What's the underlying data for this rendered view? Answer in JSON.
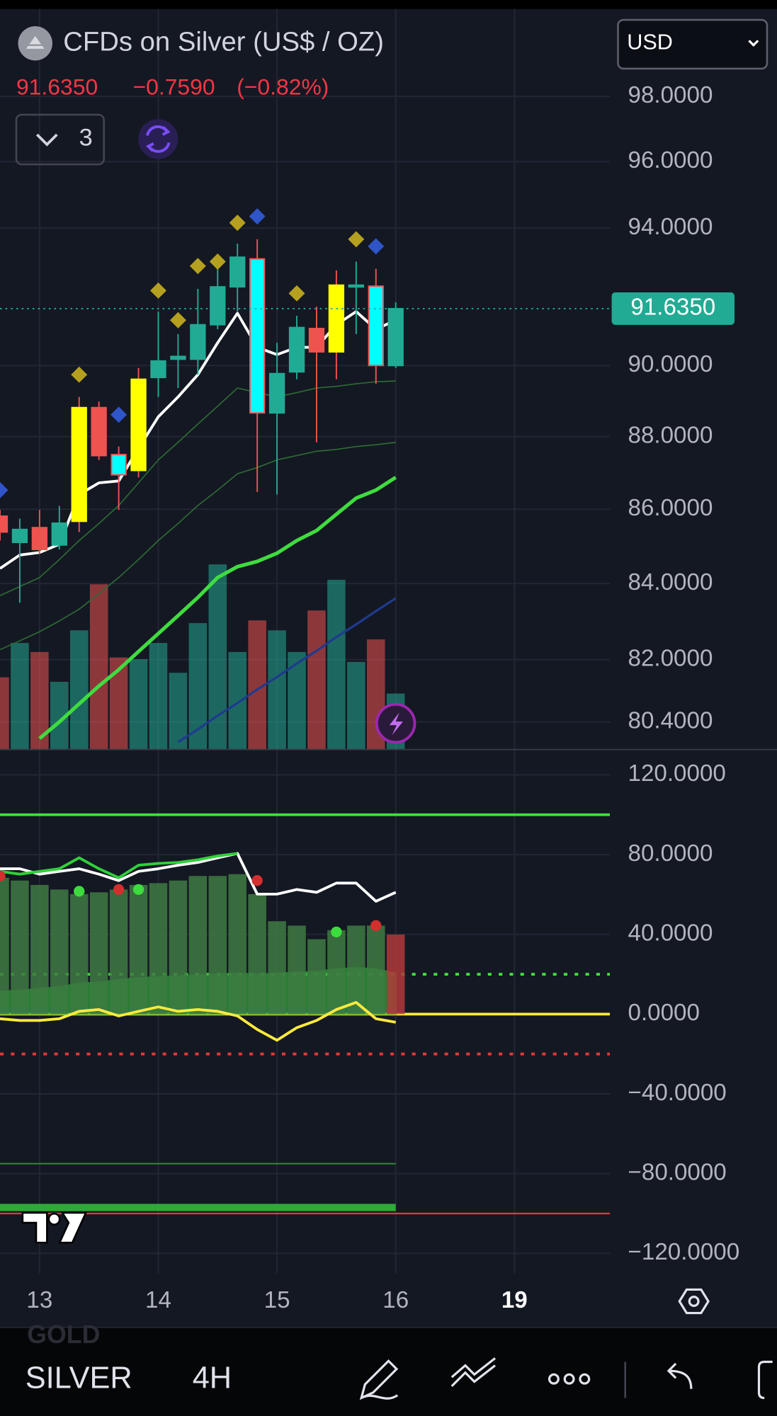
{
  "header": {
    "title": "CFDs on Silver (US$ / OZ)",
    "price": "91.6350",
    "change": "−0.7590",
    "change_percent": "(−0.82%)",
    "indicators": "3",
    "currency": "USD"
  },
  "toolbar": {
    "ghost_symbol": "GOLD",
    "symbol": "SILVER",
    "interval": "4H"
  },
  "chart_data": [
    {
      "type": "candlestick",
      "log_scale": true,
      "grid": true,
      "categories": [
        null,
        null,
        "13",
        null,
        null,
        null,
        null,
        null,
        "14",
        null,
        null,
        null,
        null,
        null,
        "15",
        null,
        null,
        null,
        null,
        null,
        "16",
        null,
        null,
        null,
        null,
        null,
        "19"
      ],
      "open": [
        85.81,
        85.1,
        85.5,
        85.03,
        85.67,
        88.81,
        86.94,
        87.06,
        89.66,
        90.18,
        90.18,
        91.17,
        92.27,
        93.09,
        88.66,
        89.82,
        91.06,
        90.39,
        92.27,
        92.29,
        90.0,
        null,
        null,
        null,
        null,
        null,
        null
      ],
      "high": [
        85.98,
        85.74,
        85.98,
        86.09,
        89.11,
        88.98,
        87.72,
        89.93,
        91.55,
        90.9,
        92.21,
        93.01,
        93.54,
        93.67,
        90.65,
        91.43,
        91.69,
        92.75,
        93.01,
        92.8,
        91.82,
        null,
        null,
        null,
        null,
        null,
        null
      ],
      "low": [
        85.15,
        83.49,
        84.8,
        84.91,
        85.38,
        87.35,
        85.98,
        86.87,
        89.11,
        89.36,
        89.74,
        91.04,
        91.55,
        86.47,
        86.4,
        89.61,
        87.84,
        89.61,
        90.9,
        89.48,
        89.93,
        null,
        null,
        null,
        null,
        null,
        null
      ],
      "close": [
        85.38,
        85.45,
        84.91,
        85.62,
        88.81,
        87.47,
        87.5,
        89.61,
        90.13,
        90.26,
        91.17,
        92.27,
        93.14,
        88.66,
        89.77,
        91.09,
        90.39,
        92.32,
        92.32,
        90.0,
        91.635,
        null,
        null,
        null,
        null,
        null,
        null
      ],
      "candle_colors": [
        "#ef5350",
        "#22ab94",
        "#ef5350",
        "#22ab94",
        "#ffff00",
        "#ef5350",
        "#00ffff",
        "#ffff00",
        "#22ab94",
        "#22ab94",
        "#22ab94",
        "#22ab94",
        "#22ab94",
        "#00ffff",
        "#22ab94",
        "#22ab94",
        "#ef5350",
        "#ffff00",
        "#22ab94",
        "#00ffff",
        "#22ab94",
        null,
        null,
        null,
        null,
        null,
        null
      ],
      "markers": [
        {
          "color": "#b5a11f",
          "values": [
            null,
            null,
            null,
            null,
            89.74,
            null,
            null,
            null,
            92.16,
            91.3,
            92.88,
            93.01,
            94.16,
            null,
            null,
            92.08,
            null,
            null,
            93.67,
            null,
            null,
            null,
            null,
            null,
            null,
            null,
            null
          ]
        },
        {
          "color": "#2f55c8",
          "values": [
            86.52,
            null,
            null,
            null,
            null,
            null,
            88.61,
            null,
            null,
            null,
            null,
            null,
            null,
            94.35,
            null,
            null,
            null,
            null,
            null,
            93.46,
            null,
            null,
            null,
            null,
            null,
            null,
            null
          ]
        }
      ],
      "volume": [
        80,
        118,
        108,
        75,
        132,
        183,
        102,
        100,
        118,
        85,
        140,
        205,
        108,
        143,
        132,
        108,
        154,
        188,
        97,
        122,
        62,
        null,
        null,
        null,
        null,
        null,
        null
      ],
      "volume_colors": [
        "#ef5350",
        "#22ab94",
        "#ef5350",
        "#22ab94",
        "#22ab94",
        "#ef5350",
        "#ef5350",
        "#22ab94",
        "#22ab94",
        "#22ab94",
        "#22ab94",
        "#22ab94",
        "#22ab94",
        "#ef5350",
        "#22ab94",
        "#22ab94",
        "#ef5350",
        "#22ab94",
        "#22ab94",
        "#ef5350",
        "#22ab94",
        null,
        null,
        null,
        null,
        null,
        null
      ],
      "lines": [
        {
          "color": "#2e6b34",
          "width": 1.3,
          "values": [
            83.68,
            83.92,
            84.16,
            84.64,
            85.15,
            85.61,
            86.1,
            86.72,
            87.35,
            87.84,
            88.35,
            88.85,
            89.36,
            89.23,
            89.11,
            89.23,
            89.36,
            89.41,
            89.48,
            89.54,
            89.56,
            null,
            null,
            null,
            null,
            null,
            null
          ]
        },
        {
          "color": "#2e6b34",
          "width": 1.3,
          "values": [
            82.26,
            82.49,
            82.73,
            83.01,
            83.32,
            83.73,
            84.16,
            84.64,
            85.15,
            85.61,
            86.1,
            86.52,
            86.97,
            87.14,
            87.35,
            87.47,
            87.59,
            87.64,
            87.72,
            87.77,
            87.84,
            null,
            null,
            null,
            null,
            null,
            null
          ]
        },
        {
          "color": "#1f3a8f",
          "width": 2.5,
          "values": [
            null,
            null,
            null,
            null,
            null,
            null,
            null,
            null,
            null,
            79.89,
            80.21,
            80.56,
            80.88,
            81.23,
            81.55,
            81.9,
            82.23,
            82.59,
            82.92,
            83.27,
            83.61,
            null,
            null,
            null,
            null,
            null,
            null
          ]
        },
        {
          "color": "#3fdc3f",
          "width": 4,
          "values": [
            null,
            null,
            79.98,
            80.4,
            80.86,
            81.32,
            81.74,
            82.21,
            82.68,
            83.15,
            83.63,
            84.16,
            84.45,
            84.59,
            84.81,
            85.15,
            85.42,
            85.86,
            86.3,
            86.52,
            86.87,
            null,
            null,
            null,
            null,
            null,
            null
          ]
        },
        {
          "color": "#ffffff",
          "width": 3,
          "values": [
            84.4,
            84.76,
            84.83,
            85.05,
            86.4,
            86.72,
            86.77,
            87.67,
            88.55,
            89.11,
            89.74,
            90.65,
            91.5,
            90.52,
            90.31,
            90.52,
            90.52,
            91.17,
            91.55,
            91.04,
            91.3,
            null,
            null,
            null,
            null,
            null,
            null
          ]
        }
      ],
      "last_price": {
        "value": 91.635,
        "label": "91.6350",
        "color": "#22ab94"
      },
      "ylim": [
        79.7,
        100.75
      ],
      "yticks": [
        {
          "value": 98,
          "label": "98.0000"
        },
        {
          "value": 96,
          "label": "96.0000"
        },
        {
          "value": 94,
          "label": "94.0000"
        },
        {
          "value": 90,
          "label": "90.0000"
        },
        {
          "value": 88,
          "label": "88.0000"
        },
        {
          "value": 86,
          "label": "86.0000"
        },
        {
          "value": 84,
          "label": "84.0000"
        },
        {
          "value": 82,
          "label": "82.0000"
        },
        {
          "value": 80.4,
          "label": "80.4000"
        }
      ]
    },
    {
      "type": "bar",
      "grid": true,
      "values": [
        68.4,
        67.0,
        64.8,
        62.5,
        60.2,
        61.1,
        62.5,
        64.8,
        65.7,
        67.0,
        69.3,
        69.3,
        70.2,
        60.2,
        46.6,
        44.4,
        37.6,
        42.1,
        44.4,
        44.4,
        39.9,
        null,
        null,
        null,
        null,
        null,
        null
      ],
      "colors": [
        "#3e7a42",
        "#3e7a42",
        "#3e7a42",
        "#3e7a42",
        "#3e7a42",
        "#3e7a42",
        "#3e7a42",
        "#3e7a42",
        "#3e7a42",
        "#3e7a42",
        "#3e7a42",
        "#3e7a42",
        "#3e7a42",
        "#3e7a42",
        "#3e7a42",
        "#3e7a42",
        "#3e7a42",
        "#3e7a42",
        "#3e7a42",
        "#3e7a42",
        "#b03a3a",
        null,
        null,
        null,
        null,
        null,
        null
      ],
      "hlines": [
        {
          "value": 100,
          "color": "#3fe13a",
          "dash": false,
          "width": 3
        },
        {
          "value": 20,
          "color": "#3fe13a",
          "dash": true,
          "width": 3
        },
        {
          "value": 0,
          "color": "#ffeb3b",
          "dash": false,
          "width": 3
        },
        {
          "value": -20,
          "color": "#e53935",
          "dash": true,
          "width": 3
        },
        {
          "value": -100,
          "color": "#e53935",
          "dash": false,
          "width": 1.8
        }
      ],
      "area": {
        "color": "#2faa3a",
        "values": [
          11.3,
          11.8,
          12.7,
          13.6,
          15.4,
          15.9,
          17.2,
          18.1,
          18.6,
          19.0,
          19.5,
          19.9,
          20.4,
          19.9,
          20.4,
          20.8,
          21.3,
          22.6,
          23.1,
          22.6,
          20.4,
          null,
          null,
          null,
          null,
          null,
          null
        ]
      },
      "lines": [
        {
          "color": "#ffffff",
          "width": 3,
          "values": [
            72.9,
            72.9,
            70.2,
            71.6,
            72.9,
            70.2,
            67.0,
            71.6,
            72.9,
            74.7,
            76.1,
            78.4,
            80.6,
            60.2,
            60.2,
            62.5,
            61.1,
            65.7,
            65.7,
            56.6,
            61.1,
            null,
            null,
            null,
            null,
            null,
            null
          ]
        },
        {
          "color": "#2fd13a",
          "width": 3,
          "values": [
            71.6,
            70.2,
            71.6,
            72.9,
            78.4,
            72.9,
            68.4,
            74.7,
            75.6,
            76.1,
            77.4,
            79.3,
            80.6,
            null,
            null,
            null,
            null,
            null,
            null,
            null,
            null,
            null,
            null,
            null,
            null,
            null,
            null
          ]
        },
        {
          "color": "#ffeb3b",
          "width": 3,
          "values": [
            -2.3,
            -3.2,
            -3.2,
            -2.3,
            1.4,
            2.3,
            -0.9,
            1.4,
            3.6,
            1.4,
            2.3,
            1.4,
            -0.9,
            -7.7,
            -13.1,
            -6.8,
            -3.2,
            2.3,
            5.9,
            -2.3,
            -4.1,
            null,
            null,
            null,
            null,
            null,
            null
          ]
        },
        {
          "color": "#2e8b34",
          "width": 1.5,
          "values": [
            -75,
            -75,
            -75,
            -75,
            -75,
            -75,
            -75,
            -75,
            -75,
            -75,
            -75,
            -75,
            -75,
            -75,
            -75,
            -75,
            -75,
            -75,
            -75,
            -75,
            -75,
            null,
            null,
            null,
            null,
            null,
            null
          ]
        },
        {
          "color": "#2faa3a",
          "width": 8,
          "values": [
            -97,
            -97,
            -97,
            -97,
            -97,
            -97,
            -97,
            -97,
            -97,
            -97,
            -97,
            -97,
            -97,
            -97,
            -97,
            -97,
            -97,
            -97,
            -97,
            -97,
            -97,
            null,
            null,
            null,
            null,
            null,
            null
          ]
        }
      ],
      "dots": [
        {
          "color": "#d32f2f",
          "values": [
            69.3,
            null,
            null,
            null,
            null,
            null,
            62.5,
            null,
            null,
            null,
            null,
            null,
            null,
            67.0,
            null,
            null,
            null,
            null,
            null,
            44.4,
            null,
            null,
            null,
            null,
            null,
            null,
            null
          ]
        },
        {
          "color": "#3ddc3d",
          "values": [
            null,
            null,
            null,
            null,
            61.6,
            null,
            null,
            62.5,
            null,
            null,
            null,
            null,
            null,
            null,
            null,
            null,
            null,
            41.2,
            null,
            null,
            null,
            null,
            null,
            null,
            null,
            null,
            null
          ]
        }
      ],
      "ylim": [
        -130,
        132.7
      ],
      "yticks": [
        {
          "value": 120,
          "label": "120.0000"
        },
        {
          "value": 80,
          "label": "80.0000"
        },
        {
          "value": 40,
          "label": "40.0000"
        },
        {
          "value": 0,
          "label": "0.0000"
        },
        {
          "value": -40,
          "label": "−40.0000"
        },
        {
          "value": -80,
          "label": "−80.0000"
        },
        {
          "value": -120,
          "label": "−120.0000"
        }
      ]
    }
  ]
}
